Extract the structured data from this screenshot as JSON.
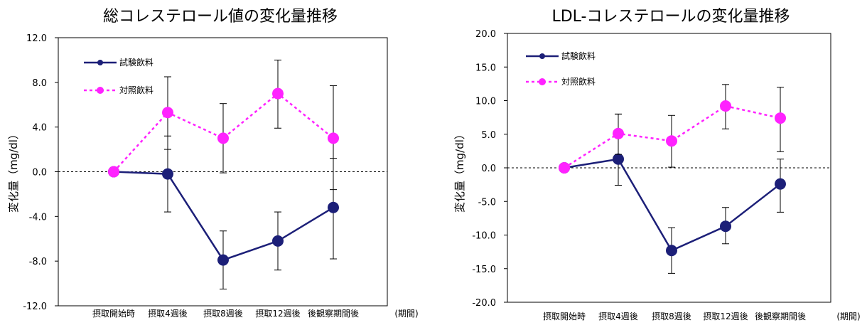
{
  "chart_data": [
    {
      "type": "line",
      "title": "総コレステロール値の変化量推移",
      "ylabel": "変化量（mg/dl）",
      "xlabel": "(期間)",
      "categories": [
        "摂取開始時",
        "摂取4週後",
        "摂取8週後",
        "摂取12週後",
        "後観察期間後"
      ],
      "ylim": [
        -12,
        12
      ],
      "yticks": [
        "12.0",
        "8.0",
        "4.0",
        "0.0",
        "-4.0",
        "-8.0",
        "-12.0"
      ],
      "ytick_values": [
        12,
        8,
        4,
        0,
        -4,
        -8,
        -12
      ],
      "zero_line": "dotted",
      "legend_position": "top-left",
      "series": [
        {
          "name": "試験飲料",
          "values": [
            0,
            -0.2,
            -7.9,
            -6.2,
            -3.2
          ],
          "error_low": [
            null,
            -3.6,
            -10.5,
            -8.8,
            -7.8
          ],
          "error_high": [
            null,
            3.2,
            -5.3,
            -3.6,
            1.2
          ],
          "color": "#1c1f78",
          "style": "solid"
        },
        {
          "name": "対照飲料",
          "values": [
            0,
            5.3,
            3.0,
            7.0,
            3.0
          ],
          "error_low": [
            null,
            2.0,
            -0.1,
            3.9,
            -1.6
          ],
          "error_high": [
            null,
            8.5,
            6.1,
            10.0,
            7.7
          ],
          "color": "#ff22ff",
          "style": "dotted"
        }
      ]
    },
    {
      "type": "line",
      "title": "LDL-コレステロールの変化量推移",
      "ylabel": "変化量（mg/dl）",
      "xlabel": "(期間)",
      "categories": [
        "摂取開始時",
        "摂取4週後",
        "摂取8週後",
        "摂取12週後",
        "後観察期間後"
      ],
      "ylim": [
        -20,
        20
      ],
      "yticks": [
        "20.0",
        "15.0",
        "10.0",
        "5.0",
        "0.0",
        "-5.0",
        "-10.0",
        "-15.0",
        "-20.0"
      ],
      "ytick_values": [
        20,
        15,
        10,
        5,
        0,
        -5,
        -10,
        -15,
        -20
      ],
      "zero_line": "dotted",
      "legend_position": "top-left",
      "series": [
        {
          "name": "試験飲料",
          "values": [
            0,
            1.3,
            -12.3,
            -8.7,
            -2.4
          ],
          "error_low": [
            null,
            -2.6,
            -15.7,
            -11.3,
            -6.6
          ],
          "error_high": [
            null,
            8.0,
            -8.9,
            -5.9,
            1.3
          ],
          "color": "#1c1f78",
          "style": "solid"
        },
        {
          "name": "対照飲料",
          "values": [
            0,
            5.1,
            4.0,
            9.2,
            7.4
          ],
          "error_low": [
            null,
            2.0,
            0.1,
            5.8,
            2.4
          ],
          "error_high": [
            null,
            8.0,
            7.8,
            12.4,
            12.0
          ],
          "color": "#ff22ff",
          "style": "dotted"
        }
      ]
    }
  ]
}
